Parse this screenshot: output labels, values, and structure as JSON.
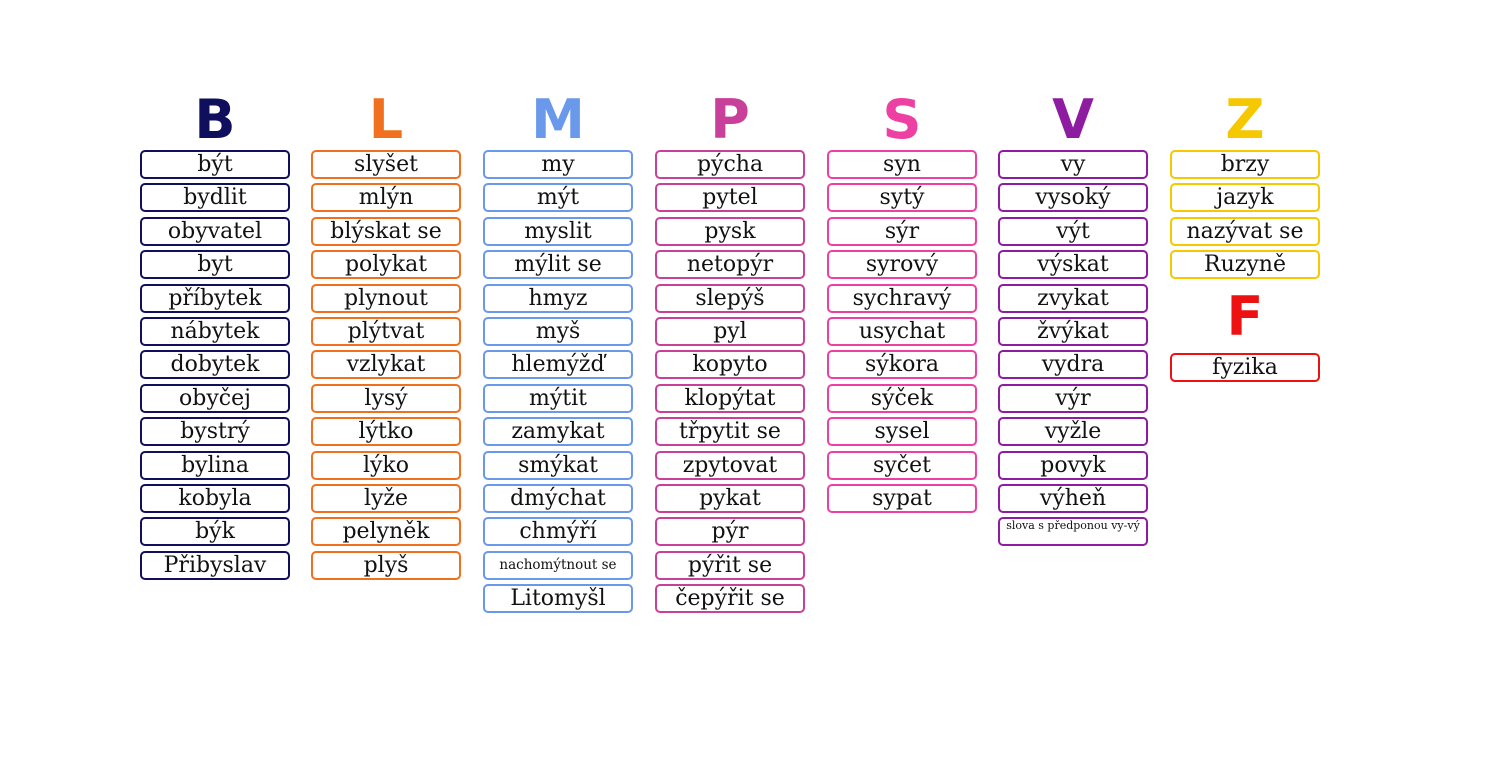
{
  "columns": [
    {
      "letter": "B",
      "color": "#0f0f5e",
      "words": [
        "být",
        "bydlit",
        "obyvatel",
        "byt",
        "příbytek",
        "nábytek",
        "dobytek",
        "obyčej",
        "bystrý",
        "bylina",
        "kobyla",
        "býk",
        "Přibyslav"
      ]
    },
    {
      "letter": "L",
      "color": "#f07020",
      "words": [
        "slyšet",
        "mlýn",
        "blýskat se",
        "polykat",
        "plynout",
        "plýtvat",
        "vzlykat",
        "lysý",
        "lýtko",
        "lýko",
        "lyže",
        "pelyněk",
        "plyš"
      ]
    },
    {
      "letter": "M",
      "color": "#6a98ea",
      "words": [
        "my",
        "mýt",
        "myslit",
        "mýlit se",
        "hmyz",
        "myš",
        "hlemýžď",
        "mýtit",
        "zamykat",
        "smýkat",
        "dmýchat",
        "chmýří",
        "nachomýtnout se",
        "Litomyšl"
      ]
    },
    {
      "letter": "P",
      "color": "#c8409a",
      "words": [
        "pýcha",
        "pytel",
        "pysk",
        "netopýr",
        "slepýš",
        "pyl",
        "kopyto",
        "klopýtat",
        "třpytit se",
        "zpytovat",
        "pykat",
        "pýr",
        "pýřit se",
        "čepýřit se"
      ]
    },
    {
      "letter": "S",
      "color": "#ee40a2",
      "words": [
        "syn",
        "sytý",
        "sýr",
        "syrový",
        "sychravý",
        "usychat",
        "sýkora",
        "sýček",
        "sysel",
        "syčet",
        "sypat"
      ]
    },
    {
      "letter": "V",
      "color": "#8e1ca0",
      "words": [
        "vy",
        "vysoký",
        "výt",
        "výskat",
        "zvykat",
        "žvýkat",
        "vydra",
        "výr",
        "vyžle",
        "povyk",
        "výheň",
        "slova s předponou vy-vý"
      ]
    },
    {
      "letter": "Z",
      "color": "#f5c800",
      "words": [
        "brzy",
        "jazyk",
        "nazývat se",
        "Ruzyně"
      ]
    }
  ],
  "extra": {
    "letter": "F",
    "color": "#ee1111",
    "words": [
      "fyzika"
    ]
  }
}
